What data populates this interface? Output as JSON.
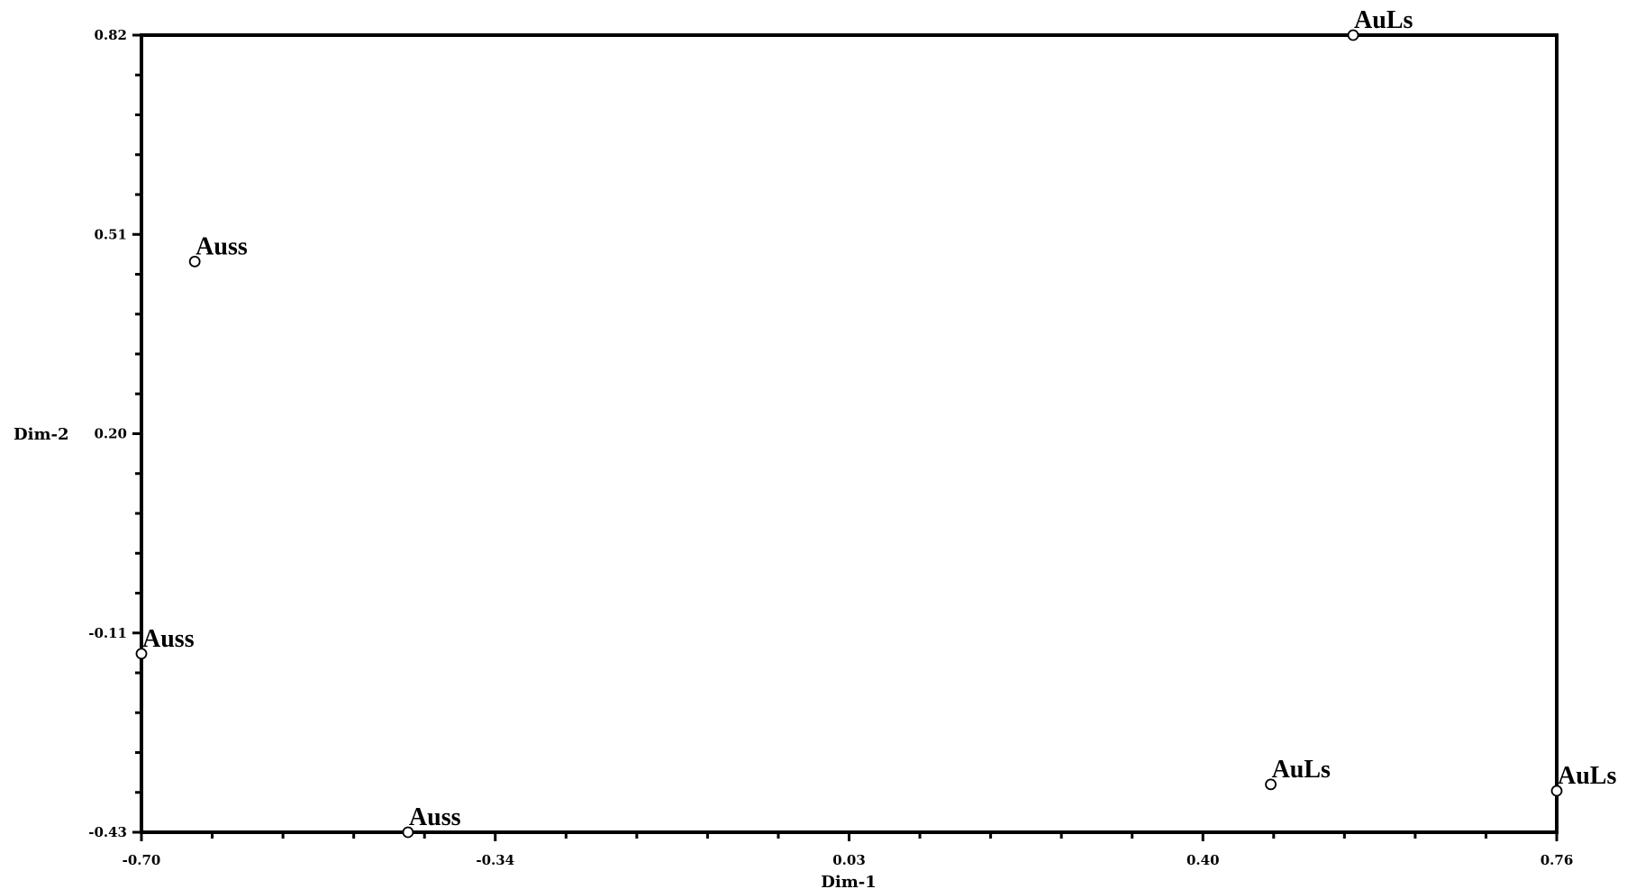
{
  "chart_data": {
    "type": "scatter",
    "title": "",
    "xlabel": "Dim-1",
    "ylabel": "Dim-2",
    "xlim": [
      -0.7,
      0.76
    ],
    "ylim": [
      -0.43,
      0.82
    ],
    "xticks": [
      "-0.70",
      "-0.34",
      "0.03",
      "0.40",
      "0.76"
    ],
    "yticks": [
      "0.82",
      "0.51",
      "0.20",
      "-0.11",
      "-0.43"
    ],
    "grid": false,
    "points": [
      {
        "x": 0.55,
        "y": 0.82,
        "label": "AuLs"
      },
      {
        "x": -0.645,
        "y": 0.465,
        "label": "Auss"
      },
      {
        "x": -0.7,
        "y": -0.15,
        "label": "Auss"
      },
      {
        "x": -0.425,
        "y": -0.43,
        "label": "Auss"
      },
      {
        "x": 0.465,
        "y": -0.355,
        "label": "AuLs"
      },
      {
        "x": 0.76,
        "y": -0.365,
        "label": "AuLs"
      }
    ]
  }
}
